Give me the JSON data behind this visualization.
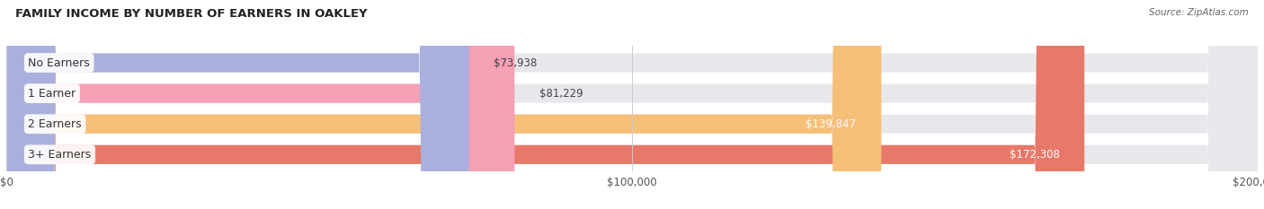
{
  "title": "FAMILY INCOME BY NUMBER OF EARNERS IN OAKLEY",
  "source": "Source: ZipAtlas.com",
  "categories": [
    "No Earners",
    "1 Earner",
    "2 Earners",
    "3+ Earners"
  ],
  "values": [
    73938,
    81229,
    139847,
    172308
  ],
  "bar_colors": [
    "#aab0dd",
    "#f4a0b5",
    "#f5bf78",
    "#e8786a"
  ],
  "track_color": "#e8e8ec",
  "label_bg_color": "#ffffff",
  "xlim": [
    0,
    200000
  ],
  "figsize": [
    14.06,
    2.33
  ],
  "dpi": 100
}
